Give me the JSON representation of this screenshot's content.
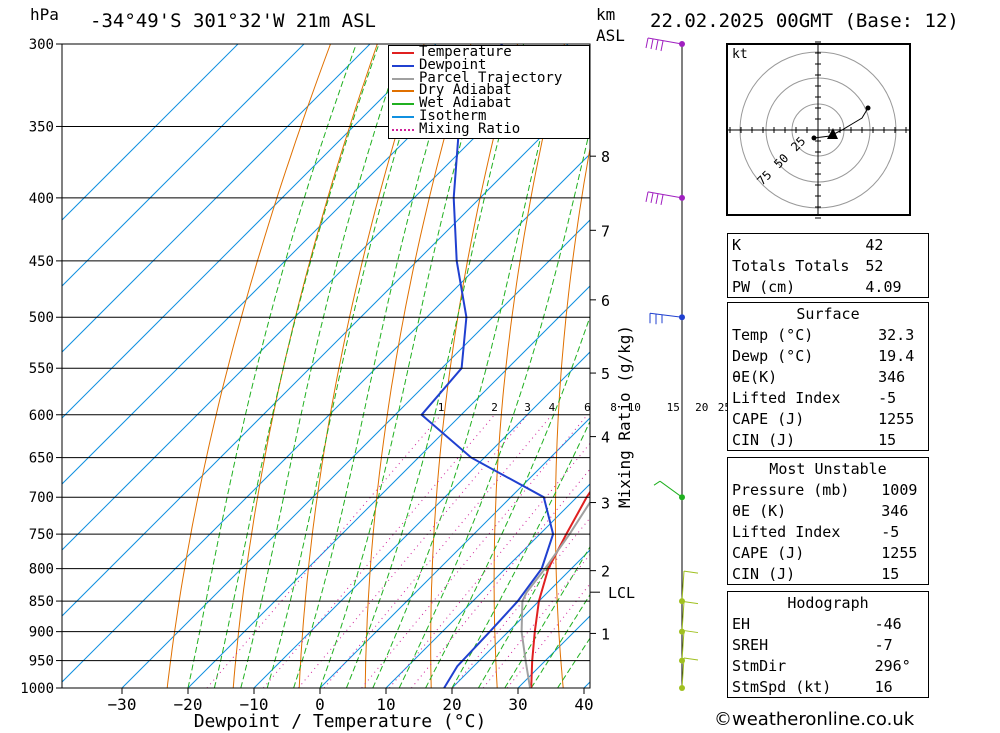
{
  "header": {
    "hpa_label": "hPa",
    "location": "-34°49'S 301°32'W 21m ASL",
    "km_label": "km",
    "asl_label": "ASL",
    "datetime": "22.02.2025 00GMT (Base: 12)"
  },
  "legend": {
    "items": [
      {
        "label": "Temperature",
        "color": "#e02020",
        "style": "solid"
      },
      {
        "label": "Dewpoint",
        "color": "#2040d0",
        "style": "solid"
      },
      {
        "label": "Parcel Trajectory",
        "color": "#a0a0a0",
        "style": "solid"
      },
      {
        "label": "Dry Adiabat",
        "color": "#e07000",
        "style": "solid"
      },
      {
        "label": "Wet Adiabat",
        "color": "#20b020",
        "style": "solid"
      },
      {
        "label": "Isotherm",
        "color": "#1090e0",
        "style": "solid"
      },
      {
        "label": "Mixing Ratio",
        "color": "#d0209a",
        "style": "dotted"
      }
    ]
  },
  "chart_data": {
    "type": "line",
    "chart_kind": "skew-T log-P diagram",
    "xlabel": "Dewpoint / Temperature (°C)",
    "ylabel": "hPa",
    "x_ticks": [
      -30,
      -20,
      -10,
      0,
      10,
      20,
      30,
      40
    ],
    "y_pressure_levels": [
      300,
      350,
      400,
      450,
      500,
      550,
      600,
      650,
      700,
      750,
      800,
      850,
      900,
      950,
      1000
    ],
    "y_scale": "log",
    "km_ticks": [
      {
        "km": 1,
        "p": 903
      },
      {
        "km": 2,
        "p": 803
      },
      {
        "km": 3,
        "p": 707
      },
      {
        "km": 4,
        "p": 625
      },
      {
        "km": 5,
        "p": 555
      },
      {
        "km": 6,
        "p": 484
      },
      {
        "km": 7,
        "p": 425
      },
      {
        "km": 8,
        "p": 370
      }
    ],
    "lcl_label": "LCL",
    "lcl_pressure": 836,
    "mixing_ratio_label": "Mixing Ratio (g/kg)",
    "mixing_ratio_values": [
      "1",
      "2",
      "3",
      "4",
      "6",
      "8",
      "10",
      "15",
      "20",
      "25"
    ],
    "series": [
      {
        "name": "Temperature",
        "color": "#e02020",
        "points": [
          [
            1005,
            32.3
          ],
          [
            1000,
            32.0
          ],
          [
            950,
            28.0
          ],
          [
            900,
            24.0
          ],
          [
            850,
            20.0
          ],
          [
            800,
            16.5
          ],
          [
            750,
            14.0
          ],
          [
            700,
            11.5
          ],
          [
            650,
            9.5
          ],
          [
            600,
            4.2
          ],
          [
            550,
            -2.5
          ],
          [
            500,
            -9.5
          ],
          [
            450,
            -17.5
          ],
          [
            400,
            -25.5
          ],
          [
            350,
            -37.5
          ],
          [
            300,
            -49.0
          ]
        ]
      },
      {
        "name": "Dewpoint",
        "color": "#2040d0",
        "points": [
          [
            1005,
            19.4
          ],
          [
            1000,
            18.8
          ],
          [
            960,
            17.5
          ],
          [
            900,
            17.2
          ],
          [
            850,
            16.8
          ],
          [
            800,
            15.5
          ],
          [
            750,
            12.0
          ],
          [
            700,
            5.0
          ],
          [
            650,
            -12.0
          ],
          [
            600,
            -26.0
          ],
          [
            550,
            -27.0
          ],
          [
            500,
            -34.0
          ],
          [
            450,
            -44.0
          ],
          [
            400,
            -54.0
          ],
          [
            350,
            -64.0
          ],
          [
            300,
            -70.0
          ]
        ]
      },
      {
        "name": "Parcel Trajectory",
        "color": "#a0a0a0",
        "points": [
          [
            1005,
            32.3
          ],
          [
            950,
            27.0
          ],
          [
            900,
            22.0
          ],
          [
            850,
            17.5
          ],
          [
            836,
            16.8
          ],
          [
            800,
            16.0
          ],
          [
            750,
            14.5
          ],
          [
            700,
            12.5
          ],
          [
            650,
            10.0
          ],
          [
            600,
            7.0
          ],
          [
            550,
            3.0
          ],
          [
            500,
            -3.0
          ],
          [
            450,
            -10.0
          ],
          [
            400,
            -18.0
          ],
          [
            370,
            -24.0
          ]
        ]
      }
    ],
    "wind_barbs": [
      {
        "p": 300,
        "color": "#a020c0"
      },
      {
        "p": 400,
        "color": "#a020c0"
      },
      {
        "p": 500,
        "color": "#2040d0"
      },
      {
        "p": 700,
        "color": "#20b020"
      },
      {
        "p": 850,
        "color": "#a0c020"
      },
      {
        "p": 900,
        "color": "#a0c020"
      },
      {
        "p": 950,
        "color": "#a0c020"
      },
      {
        "p": 1000,
        "color": "#a0c020"
      }
    ]
  },
  "hodograph": {
    "unit_label": "kt",
    "ring_labels": [
      "25",
      "50",
      "75"
    ]
  },
  "indices": {
    "general": [
      {
        "label": "K",
        "value": "42"
      },
      {
        "label": "Totals Totals",
        "value": "52"
      },
      {
        "label": "PW (cm)",
        "value": "4.09"
      }
    ],
    "surface_title": "Surface",
    "surface": [
      {
        "label": "Temp (°C)",
        "value": "32.3"
      },
      {
        "label": "Dewp (°C)",
        "value": "19.4"
      },
      {
        "label": "θE(K)",
        "value": "346"
      },
      {
        "label": "Lifted Index",
        "value": "-5"
      },
      {
        "label": "CAPE (J)",
        "value": "1255"
      },
      {
        "label": "CIN (J)",
        "value": "15"
      }
    ],
    "mu_title": "Most Unstable",
    "most_unstable": [
      {
        "label": "Pressure (mb)",
        "value": "1009"
      },
      {
        "label": "θE (K)",
        "value": "346"
      },
      {
        "label": "Lifted Index",
        "value": "-5"
      },
      {
        "label": "CAPE (J)",
        "value": "1255"
      },
      {
        "label": "CIN (J)",
        "value": "15"
      }
    ],
    "hodo_title": "Hodograph",
    "hodograph_params": [
      {
        "label": "EH",
        "value": "-46"
      },
      {
        "label": "SREH",
        "value": "-7"
      },
      {
        "label": "StmDir",
        "value": "296°"
      },
      {
        "label": "StmSpd (kt)",
        "value": "16"
      }
    ]
  },
  "copyright": "©weatheronline.co.uk"
}
